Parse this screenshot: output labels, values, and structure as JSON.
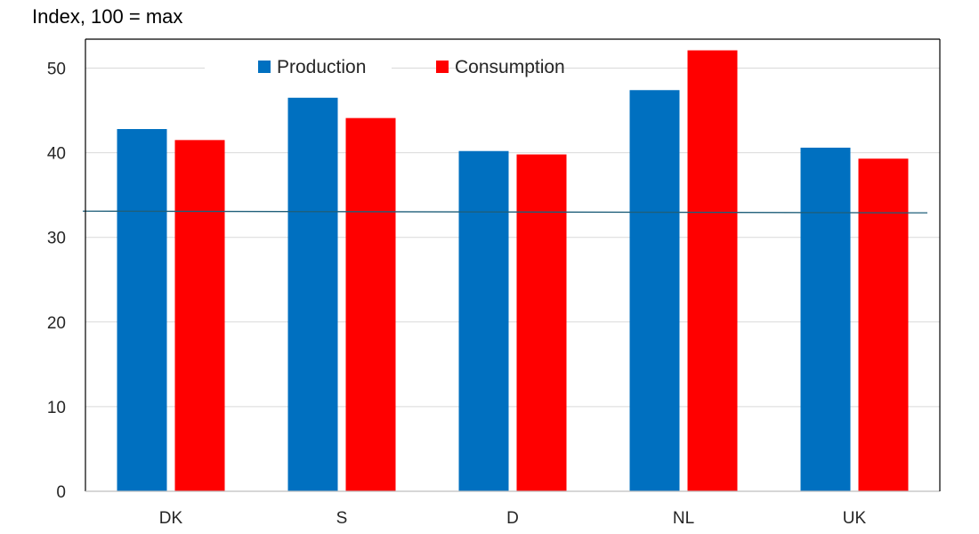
{
  "chart_data": {
    "type": "bar",
    "unit_label": "Index, 100 = max",
    "categories": [
      "DK",
      "S",
      "D",
      "NL",
      "UK"
    ],
    "series": [
      {
        "name": "Production",
        "color": "#0070C0",
        "values": [
          42.8,
          46.5,
          40.2,
          47.4,
          40.6
        ]
      },
      {
        "name": "Consumption",
        "color": "#FF0000",
        "values": [
          41.5,
          44.1,
          39.8,
          52.1,
          39.3
        ]
      }
    ],
    "ylim": [
      0,
      53
    ],
    "yticks": [
      0,
      10,
      20,
      30,
      40,
      50
    ],
    "reference_line": {
      "start": 33.1,
      "end": 32.9,
      "color": "#1F5F7A"
    },
    "grid": true,
    "legend_position": "top-center"
  }
}
